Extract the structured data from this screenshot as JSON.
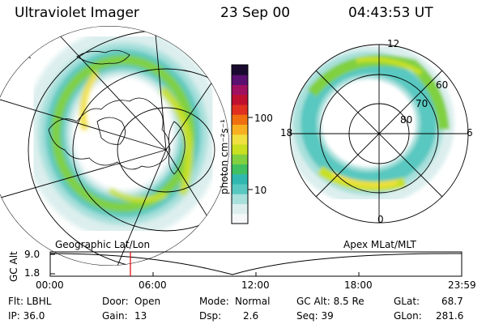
{
  "header": {
    "instrument": "Ultraviolet Imager",
    "date": "23 Sep 00",
    "time": "04:43:53 UT"
  },
  "colorbar": {
    "unit_label": "photon cm⁻²s⁻¹",
    "tick_100": "100",
    "tick_10": "10",
    "colors": [
      "#f4f8f8",
      "#dcefee",
      "#a8e0dc",
      "#58c8c0",
      "#30b8b0",
      "#40c060",
      "#80d040",
      "#c8e020",
      "#f0e040",
      "#f8b020",
      "#f07010",
      "#e03020",
      "#c01030",
      "#a01060",
      "#5a1070",
      "#1a0a30"
    ]
  },
  "geo_map": {
    "label": "Geographic Lat/Lon"
  },
  "apex_map": {
    "label": "Apex MLat/MLT",
    "mlt_12": "12",
    "mlt_18": "18",
    "mlt_6": "6",
    "mlt_0": "0",
    "lat_60": "60",
    "lat_70": "70",
    "lat_80": "80"
  },
  "altitude_plot": {
    "ylabel": "GC Alt",
    "ytick_high": "9.0",
    "ytick_low": "1.8",
    "xticks": [
      "00:00",
      "06:00",
      "12:00",
      "18:00",
      "23:59"
    ],
    "cursor_time": "04:43:53",
    "cursor_color": "#e00000"
  },
  "info": {
    "filter": "Flt: LBHL",
    "door_label": "Door:",
    "door_value": "Open",
    "mode_label": "Mode:",
    "mode_value": "Normal",
    "gc_alt": "GC Alt: 8.5 Re",
    "glat_label": "GLat:",
    "glat_value": "68.7",
    "ip": "IP: 36.0",
    "gain_label": "Gain:",
    "gain_value": "13",
    "dsp_label": "Dsp:",
    "dsp_value": "2.6",
    "seq": "Seq: 39",
    "glon_label": "GLon:",
    "glon_value": "281.6"
  }
}
